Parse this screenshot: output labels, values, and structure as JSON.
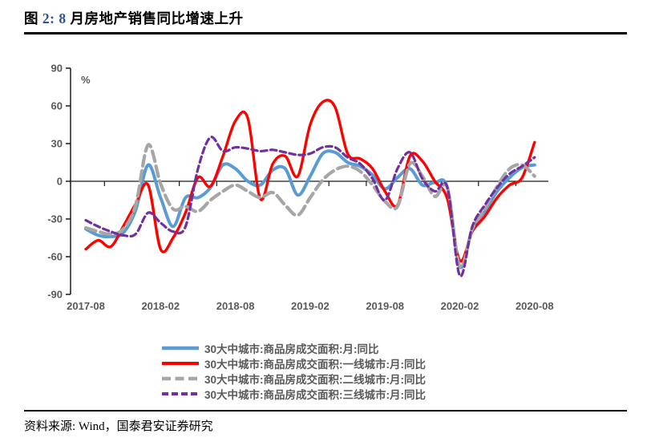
{
  "figure": {
    "title_prefix": "图 ",
    "title_num1": "2: ",
    "title_num2": "8 ",
    "title_rest": "月房地产销售同比增速上升",
    "accent_color": "#2E5395"
  },
  "source_note": "资料来源: Wind，国泰君安证券研究",
  "chart_data": {
    "type": "line",
    "unit_label": "%",
    "legend_position": "bottom",
    "grid": "zero-line-only",
    "x_axis": {
      "categories_start": "2017-08",
      "categories_end": "2020-08",
      "n_points": 37,
      "tick_labels": [
        "2017-08",
        "2018-02",
        "2018-08",
        "2019-02",
        "2019-08",
        "2020-02",
        "2020-08"
      ],
      "tick_months": [
        0,
        6,
        12,
        18,
        24,
        30,
        36
      ],
      "minor_tick_months": [
        1.5,
        4.5,
        7.5,
        10.5,
        13.5,
        16.5,
        19.5,
        22.5,
        25.5,
        28.5,
        31.5,
        34.5
      ]
    },
    "y_axis": {
      "tick_labels": [
        "90",
        "60",
        "30",
        "0",
        "-30",
        "-60",
        "-90"
      ],
      "ticks": [
        90,
        60,
        30,
        0,
        -30,
        -60,
        -90
      ],
      "range": [
        -90,
        90
      ]
    },
    "series": [
      {
        "name": "30大中城市:商品房成交面积:月:同比",
        "color": "#5B9BD5",
        "style": "solid",
        "values": [
          -38,
          -43,
          -44,
          -41,
          -23,
          13,
          -13,
          -36,
          -13,
          -13,
          -5,
          13,
          10,
          0,
          -3,
          9,
          10,
          -11,
          4,
          22,
          23,
          15,
          12,
          5,
          -6,
          3,
          10,
          -3,
          -1,
          -5,
          -68,
          -38,
          -24,
          -8,
          3,
          11,
          13
        ]
      },
      {
        "name": "30大中城市:商品房成交面积:一线城市:月:同比",
        "color": "#FF0000",
        "style": "solid",
        "values": [
          -54,
          -47,
          -52,
          -36,
          -18,
          -3,
          -54,
          -45,
          -25,
          3,
          -4,
          20,
          48,
          50,
          -14,
          14,
          20,
          4,
          45,
          63,
          59,
          22,
          18,
          10,
          -8,
          -19,
          20,
          16,
          0,
          -14,
          -63,
          -40,
          -28,
          -13,
          -3,
          3,
          31
        ]
      },
      {
        "name": "30大中城市:商品房成交面积:二线城市:月:同比",
        "color": "#A6A6A6",
        "style": "dashed",
        "values": [
          -37,
          -40,
          -42,
          -38,
          -19,
          29,
          -2,
          -22,
          -20,
          -24,
          -15,
          -8,
          -3,
          -8,
          -13,
          -9,
          -19,
          -27,
          -13,
          1,
          9,
          12,
          8,
          -3,
          -16,
          -20,
          14,
          4,
          -12,
          -5,
          -68,
          -38,
          -22,
          -4,
          10,
          13,
          4
        ]
      },
      {
        "name": "30大中城市:商品房成交面积:三线城市:月:同比",
        "color": "#7030A0",
        "style": "dashed",
        "values": [
          -31,
          -36,
          -40,
          -43,
          -42,
          -25,
          -33,
          -40,
          -36,
          10,
          35,
          24,
          27,
          26,
          24,
          25,
          23,
          21,
          22,
          27,
          27,
          19,
          14,
          2,
          -15,
          10,
          23,
          2,
          -8,
          -5,
          -75,
          -36,
          -19,
          -5,
          6,
          12,
          19
        ]
      }
    ]
  }
}
